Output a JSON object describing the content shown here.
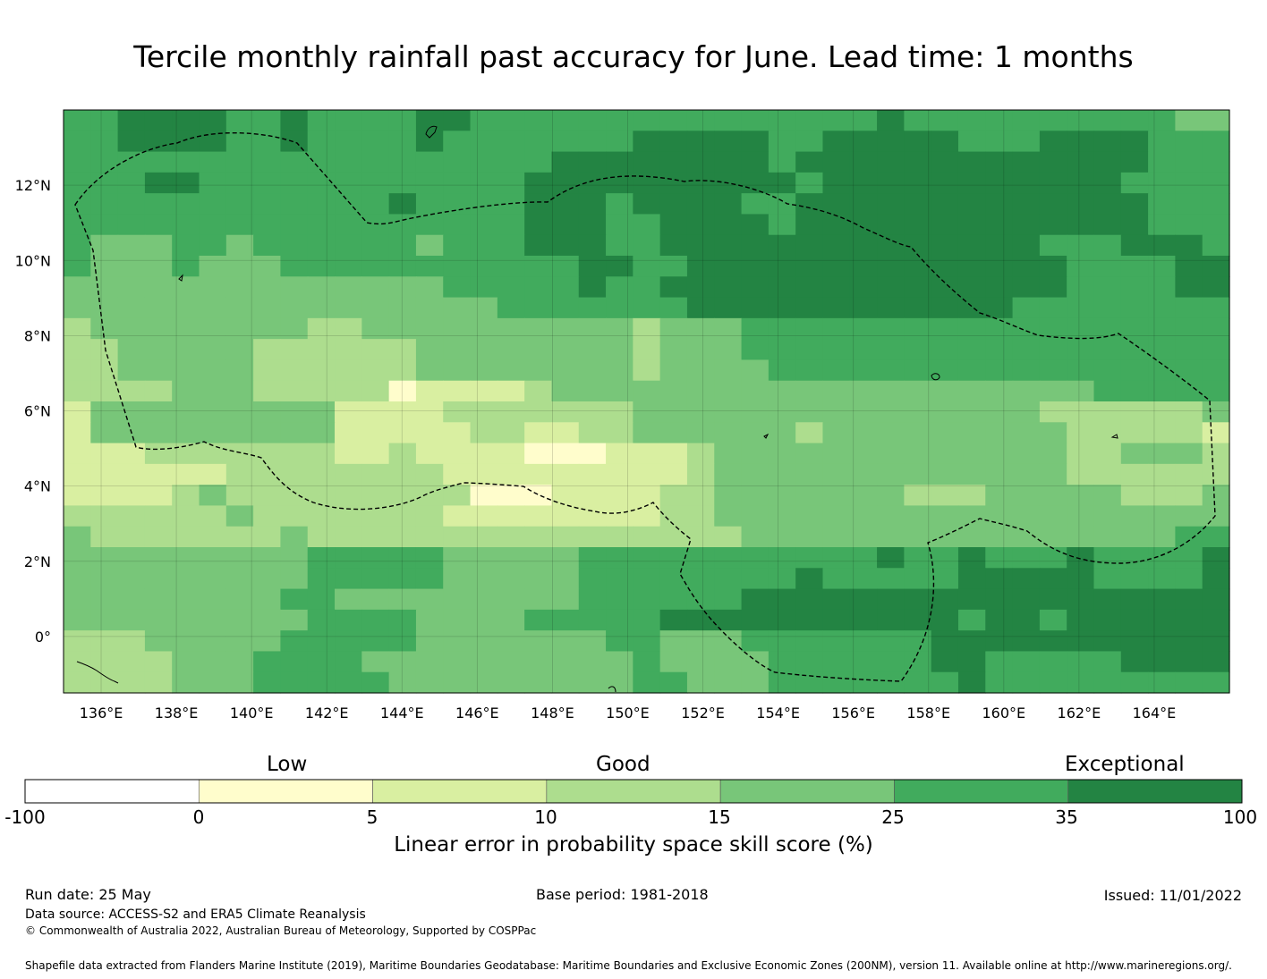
{
  "title": "Tercile monthly rainfall past accuracy for June. Lead time: 1 months",
  "map": {
    "lon_range": [
      135.0,
      166.0
    ],
    "lat_range": [
      -1.5,
      14.0
    ],
    "cell_size_deg": 0.833,
    "lon_ticks": [
      "136°E",
      "138°E",
      "140°E",
      "142°E",
      "144°E",
      "146°E",
      "148°E",
      "150°E",
      "152°E",
      "154°E",
      "156°E",
      "158°E",
      "160°E",
      "162°E",
      "164°E"
    ],
    "lat_ticks": [
      "12°N",
      "10°N",
      "8°N",
      "6°N",
      "4°N",
      "2°N",
      "0°"
    ],
    "grid_rows_north_to_south": [
      "5566665565555665555555555555556555555555544",
      "5566665565555655555556666655666665556666555",
      "5555555555555555556666666656666666666666555",
      "5556655555555555566666666665666666666665555",
      "5555555555556555566656666556666666666666555",
      "5555555555555555566655666656666666666666555",
      "5444554555555455566655666666666666665556665",
      "5444544455555555555665566666666666666555566",
      "4444444444444455555655666666666666666555566",
      "4444444444444444555555566666666666655555555",
      "3444444443344444444443444555555555555555555",
      "3344444333333444444443444555555555555555555",
      "3344444333333444444443444455555555555555555",
      "3333444333331222234444444444444444444455555",
      "2444444444222233333334444444444444443333334",
      "2444444444222223322334444443444444444333332",
      "2223333333223222211122234444444444444334443",
      "2222223333333322222222234444444444444333333",
      "2222343333333331112222334444444333444443334",
      "3333334333333322222222334444444444444444444",
      "4333333343333333333333333444444444444444455",
      "4444444445555544444555555555556556555655556",
      "4444444445555544444555555556555556666655556",
      "4444444455444444444555555666666666666666666",
      "4444444445555444455555666666666665665666666",
      "3334444455555444444455444555555566666666666",
      "3333444555544444444445444455555566555556666",
      "3333444555554444444445544455555556555555555"
    ],
    "eez_boundary_note": ""
  },
  "colorbar": {
    "category_labels": [
      "Low",
      "Good",
      "Exceptional"
    ],
    "ticks": [
      "-100",
      "0",
      "5",
      "10",
      "15",
      "25",
      "35",
      "100"
    ],
    "colors": [
      "#ffffff",
      "#fffdcc",
      "#d9efa1",
      "#addd8e",
      "#78c679",
      "#41ab5d",
      "#238443"
    ],
    "axis_label": "Linear error in probability space skill score (%)"
  },
  "footer": {
    "run_date": "Run date: 25 May",
    "base_period": "Base period: 1981-2018",
    "issued": "Issued: 11/01/2022",
    "data_source": "Data source: ACCESS-S2 and ERA5 Climate Reanalysis",
    "copyright": "© Commonwealth of Australia 2022, Australian Bureau of Meteorology, Supported by COSPPac",
    "shapefile": "Shapefile data extracted from Flanders Marine Institute (2019), Maritime Boundaries Geodatabase: Maritime Boundaries and Exclusive Economic Zones (200NM), version 11. Available online at http://www.marineregions.org/."
  }
}
